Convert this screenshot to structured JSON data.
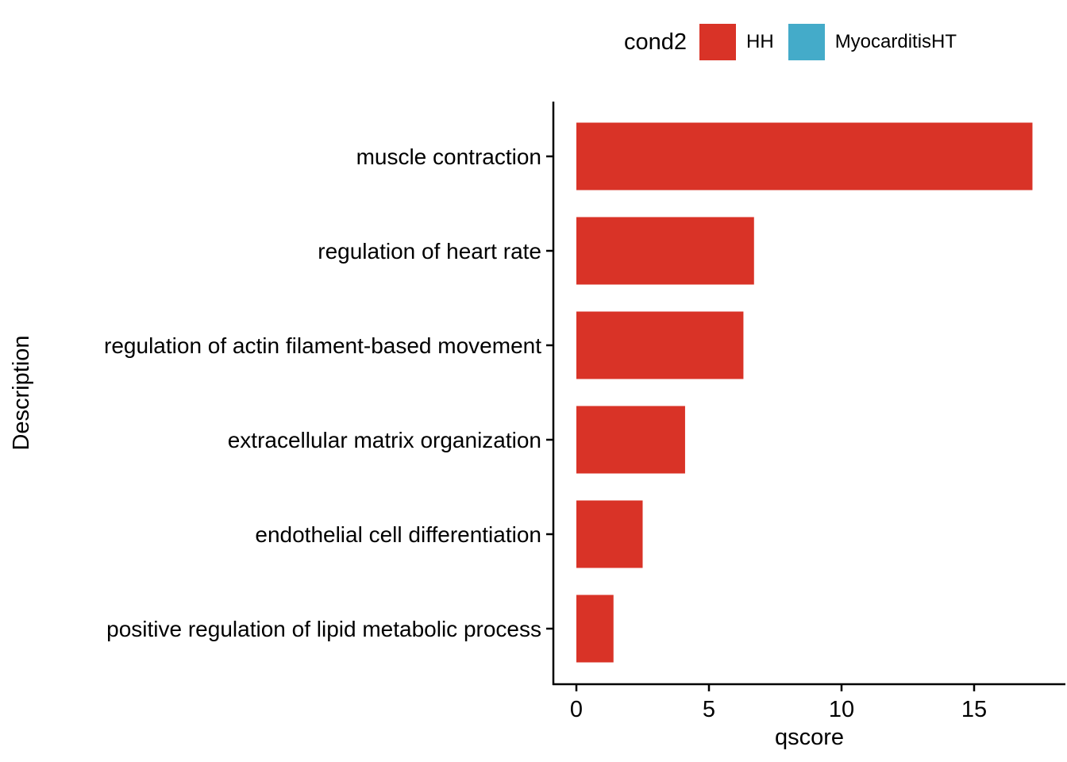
{
  "legend": {
    "title": "cond2",
    "items": [
      {
        "label": "HH",
        "color": "#D93327"
      },
      {
        "label": "MyocarditisHT",
        "color": "#44ABC9"
      }
    ]
  },
  "chart_data": {
    "type": "bar",
    "orientation": "horizontal",
    "title": "",
    "xlabel": "qscore",
    "ylabel": "Description",
    "categories": [
      "muscle contraction",
      "regulation of heart rate",
      "regulation of actin filament-based movement",
      "extracellular matrix organization",
      "endothelial cell differentiation",
      "positive regulation of lipid metabolic process"
    ],
    "series": [
      {
        "name": "HH",
        "color": "#D93327",
        "values": [
          17.2,
          6.7,
          6.3,
          4.1,
          2.5,
          1.4
        ]
      }
    ],
    "legend_title": "cond2",
    "legend_entries": [
      {
        "label": "HH",
        "color": "#D93327"
      },
      {
        "label": "MyocarditisHT",
        "color": "#44ABC9"
      }
    ],
    "legend_position": "top",
    "xlim": [
      0,
      18.5
    ],
    "x_ticks": [
      0,
      5,
      10,
      15
    ],
    "grid": false,
    "axis_color": "#000000",
    "background": "#ffffff"
  }
}
